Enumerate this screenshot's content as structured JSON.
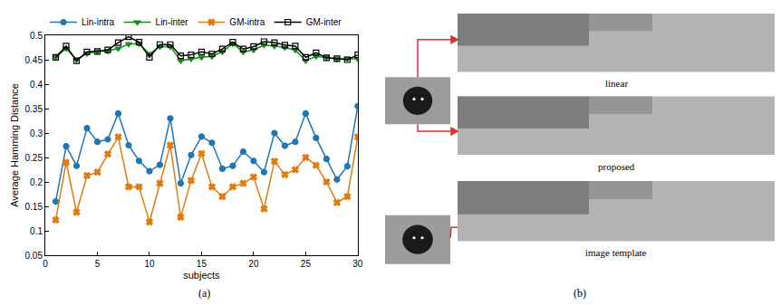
{
  "chart_data": {
    "type": "line",
    "x_label": "subjects",
    "y_label": "Average Hamming Distance",
    "x": [
      1,
      2,
      3,
      4,
      5,
      6,
      7,
      8,
      9,
      10,
      11,
      12,
      13,
      14,
      15,
      16,
      17,
      18,
      19,
      20,
      21,
      22,
      23,
      24,
      25,
      26,
      27,
      28,
      29,
      30
    ],
    "series": [
      {
        "name": "Lin-intra",
        "color": "#1f77b4",
        "marker": "circle",
        "line_style": "solid",
        "values": [
          0.16,
          0.273,
          0.233,
          0.31,
          0.282,
          0.287,
          0.34,
          0.275,
          0.243,
          0.222,
          0.235,
          0.33,
          0.197,
          0.255,
          0.293,
          0.28,
          0.227,
          0.233,
          0.262,
          0.243,
          0.22,
          0.3,
          0.274,
          0.282,
          0.34,
          0.29,
          0.247,
          0.205,
          0.232,
          0.355
        ]
      },
      {
        "name": "Lin-inter",
        "color": "#1a8a1a",
        "marker": "triangle-down",
        "line_style": "solid",
        "values": [
          0.455,
          0.473,
          0.45,
          0.463,
          0.467,
          0.468,
          0.473,
          0.482,
          0.483,
          0.462,
          0.477,
          0.477,
          0.448,
          0.452,
          0.455,
          0.457,
          0.466,
          0.483,
          0.466,
          0.47,
          0.48,
          0.478,
          0.475,
          0.47,
          0.448,
          0.457,
          0.455,
          0.452,
          0.452,
          0.452
        ]
      },
      {
        "name": "GM-intra",
        "color": "#e07b10",
        "marker": "x",
        "line_style": "solid",
        "values": [
          0.122,
          0.24,
          0.138,
          0.213,
          0.22,
          0.257,
          0.292,
          0.19,
          0.19,
          0.118,
          0.197,
          0.275,
          0.128,
          0.203,
          0.258,
          0.19,
          0.17,
          0.19,
          0.197,
          0.21,
          0.145,
          0.242,
          0.215,
          0.225,
          0.25,
          0.234,
          0.2,
          0.158,
          0.17,
          0.292
        ]
      },
      {
        "name": "GM-inter",
        "color": "#000000",
        "marker": "square-open",
        "line_style": "solid",
        "values": [
          0.455,
          0.478,
          0.448,
          0.466,
          0.467,
          0.47,
          0.485,
          0.497,
          0.486,
          0.455,
          0.481,
          0.481,
          0.458,
          0.46,
          0.466,
          0.462,
          0.472,
          0.486,
          0.472,
          0.477,
          0.487,
          0.485,
          0.48,
          0.478,
          0.455,
          0.464,
          0.454,
          0.452,
          0.45,
          0.46
        ]
      }
    ],
    "xlim": [
      0,
      30
    ],
    "xticks": [
      0,
      5,
      10,
      15,
      20,
      25,
      30
    ],
    "ylim": [
      0.05,
      0.5
    ],
    "yticks": [
      0.05,
      0.1,
      0.15,
      0.2,
      0.25,
      0.3,
      0.35,
      0.4,
      0.45,
      0.5
    ],
    "grid": false,
    "legend": "top"
  },
  "panels": {
    "labels": [
      "(a)",
      "(b)"
    ],
    "image_captions": [
      "linear",
      "proposed",
      "image template"
    ]
  }
}
